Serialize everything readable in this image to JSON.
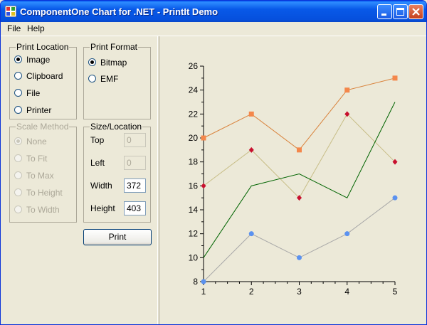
{
  "window": {
    "title": "ComponentOne Chart for .NET - PrintIt Demo"
  },
  "menu": {
    "file": "File",
    "help": "Help"
  },
  "print_location": {
    "title": "Print Location",
    "options": [
      "Image",
      "Clipboard",
      "File",
      "Printer"
    ],
    "selected": "Image"
  },
  "print_format": {
    "title": "Print Format",
    "options": [
      "Bitmap",
      "EMF"
    ],
    "selected": "Bitmap"
  },
  "scale_method": {
    "title": "Scale Method",
    "options": [
      "None",
      "To Fit",
      "To Max",
      "To Height",
      "To Width"
    ],
    "selected": "None",
    "enabled": false
  },
  "size_location": {
    "title": "Size/Location",
    "top_label": "Top",
    "top_value": "0",
    "left_label": "Left",
    "left_value": "0",
    "width_label": "Width",
    "width_value": "372",
    "height_label": "Height",
    "height_value": "403"
  },
  "print_button": {
    "label": "Print"
  },
  "chart_data": {
    "type": "line",
    "x": [
      1,
      2,
      3,
      4,
      5
    ],
    "xlim": [
      1,
      5
    ],
    "ylim": [
      8,
      26
    ],
    "y_ticks": [
      8,
      10,
      12,
      14,
      16,
      18,
      20,
      22,
      24,
      26
    ],
    "x_ticks": [
      1,
      2,
      3,
      4,
      5
    ],
    "grid": false,
    "series": [
      {
        "values": [
          20,
          22,
          19,
          24,
          25
        ],
        "color": "#D9823B",
        "marker": "square",
        "marker_color": "#F4874B"
      },
      {
        "values": [
          16,
          19,
          15,
          22,
          18
        ],
        "color": "#C8BE88",
        "marker": "diamond",
        "marker_color": "#C8102E"
      },
      {
        "values": [
          10,
          16,
          17,
          15,
          23
        ],
        "color": "#006400",
        "marker": "none",
        "marker_color": "#006400"
      },
      {
        "values": [
          8,
          12,
          10,
          12,
          15
        ],
        "color": "#A8A8A8",
        "marker": "circle",
        "marker_color": "#5B92F0"
      }
    ]
  }
}
